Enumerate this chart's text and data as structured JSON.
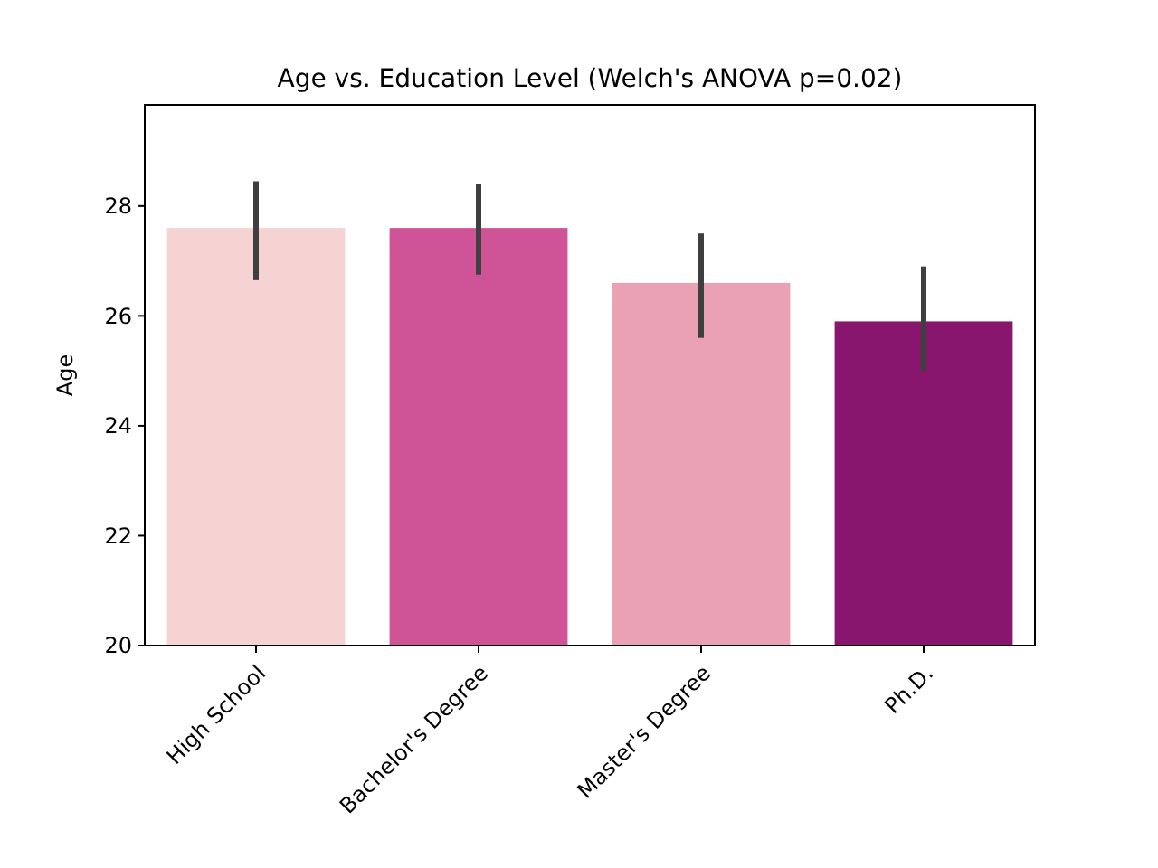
{
  "chart_data": {
    "type": "bar",
    "title": "Age vs. Education Level (Welch's ANOVA p=0.02)",
    "ylabel": "Age",
    "categories": [
      "High School",
      "Bachelor's Degree",
      "Master's Degree",
      "Ph.D."
    ],
    "values": [
      27.6,
      27.6,
      26.6,
      25.9
    ],
    "colors": [
      "#f5d3d3",
      "#cf5397",
      "#eba1b4",
      "#88166f"
    ],
    "errors": [
      [
        26.65,
        28.45
      ],
      [
        26.75,
        28.4
      ],
      [
        25.6,
        27.5
      ],
      [
        25.0,
        26.9
      ]
    ],
    "ylim": [
      20,
      29.84
    ],
    "yticks": [
      20,
      22,
      24,
      26,
      28
    ]
  }
}
